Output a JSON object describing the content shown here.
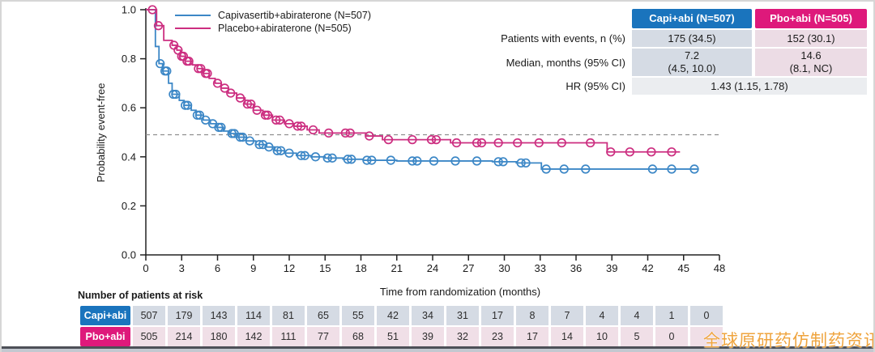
{
  "colors": {
    "capi_line": "#3c87c6",
    "pbo_line": "#cc2e80",
    "capi_header_bg": "#1a74bd",
    "pbo_header_bg": "#de197b",
    "capi_cell_bg": "#d5dbe4",
    "pbo_cell_bg": "#ecdce5",
    "risk_pbo_cell_bg": "#f0dfe7",
    "hr_cell_bg": "#ebedf0",
    "reference_line": "#8f8f8f",
    "axis": "#222222",
    "watermark": "#efa43e"
  },
  "chart_data": {
    "type": "line",
    "subtype": "kaplan-meier-step",
    "title": "",
    "xlabel": "Time from randomization (months)",
    "ylabel": "Probability event-free",
    "xlim": [
      0,
      48
    ],
    "ylim": [
      0.0,
      1.0
    ],
    "x_ticks": [
      0,
      3,
      6,
      9,
      12,
      15,
      18,
      21,
      24,
      27,
      30,
      33,
      36,
      39,
      42,
      45,
      48
    ],
    "y_ticks": [
      "0.0",
      "0.2",
      "0.4",
      "0.6",
      "0.8",
      "1.0"
    ],
    "grid": false,
    "legend_position": "top-left-inside",
    "reference_line_y": 0.49,
    "series": [
      {
        "name": "capi",
        "label": "Capivasertib+abiraterone (N=507)",
        "color": "#3c87c6",
        "end_x": 46.2,
        "steps": [
          [
            0,
            1.0
          ],
          [
            0.8,
            0.85
          ],
          [
            1.1,
            0.78
          ],
          [
            1.4,
            0.75
          ],
          [
            1.9,
            0.7
          ],
          [
            2.2,
            0.655
          ],
          [
            2.8,
            0.63
          ],
          [
            3.2,
            0.61
          ],
          [
            3.8,
            0.59
          ],
          [
            4.2,
            0.57
          ],
          [
            4.8,
            0.55
          ],
          [
            5.4,
            0.535
          ],
          [
            5.9,
            0.52
          ],
          [
            6.5,
            0.505
          ],
          [
            7.0,
            0.495
          ],
          [
            7.6,
            0.48
          ],
          [
            8.4,
            0.465
          ],
          [
            9.2,
            0.45
          ],
          [
            10.0,
            0.44
          ],
          [
            10.8,
            0.425
          ],
          [
            11.6,
            0.415
          ],
          [
            12.6,
            0.405
          ],
          [
            13.8,
            0.4
          ],
          [
            15.0,
            0.395
          ],
          [
            16.5,
            0.39
          ],
          [
            18.2,
            0.386
          ],
          [
            21.0,
            0.383
          ],
          [
            29.0,
            0.38
          ],
          [
            31.0,
            0.375
          ],
          [
            33.1,
            0.35
          ]
        ],
        "censors": [
          [
            1.2,
            0.78
          ],
          [
            1.6,
            0.75
          ],
          [
            1.75,
            0.75
          ],
          [
            2.3,
            0.655
          ],
          [
            2.5,
            0.655
          ],
          [
            3.3,
            0.61
          ],
          [
            3.5,
            0.61
          ],
          [
            4.3,
            0.57
          ],
          [
            4.5,
            0.57
          ],
          [
            5.0,
            0.55
          ],
          [
            5.6,
            0.535
          ],
          [
            6.1,
            0.52
          ],
          [
            6.3,
            0.52
          ],
          [
            7.2,
            0.495
          ],
          [
            7.4,
            0.495
          ],
          [
            7.9,
            0.48
          ],
          [
            8.1,
            0.48
          ],
          [
            8.7,
            0.465
          ],
          [
            9.5,
            0.45
          ],
          [
            9.8,
            0.45
          ],
          [
            10.3,
            0.44
          ],
          [
            11.0,
            0.425
          ],
          [
            11.3,
            0.425
          ],
          [
            12.0,
            0.415
          ],
          [
            13.0,
            0.405
          ],
          [
            13.3,
            0.405
          ],
          [
            14.2,
            0.4
          ],
          [
            15.2,
            0.395
          ],
          [
            15.6,
            0.395
          ],
          [
            16.9,
            0.39
          ],
          [
            17.2,
            0.39
          ],
          [
            18.5,
            0.386
          ],
          [
            18.9,
            0.386
          ],
          [
            20.5,
            0.386
          ],
          [
            22.3,
            0.383
          ],
          [
            22.7,
            0.383
          ],
          [
            24.1,
            0.383
          ],
          [
            25.9,
            0.383
          ],
          [
            27.7,
            0.383
          ],
          [
            29.5,
            0.38
          ],
          [
            29.9,
            0.38
          ],
          [
            31.4,
            0.375
          ],
          [
            31.8,
            0.375
          ],
          [
            33.5,
            0.35
          ],
          [
            35.0,
            0.35
          ],
          [
            36.8,
            0.35
          ],
          [
            42.4,
            0.35
          ],
          [
            44.0,
            0.35
          ],
          [
            45.9,
            0.35
          ]
        ]
      },
      {
        "name": "pbo",
        "label": "Placebo+abiraterone (N=505)",
        "color": "#cc2e80",
        "end_x": 44.7,
        "steps": [
          [
            0,
            1.0
          ],
          [
            0.9,
            0.935
          ],
          [
            1.5,
            0.875
          ],
          [
            2.2,
            0.855
          ],
          [
            2.6,
            0.835
          ],
          [
            2.9,
            0.81
          ],
          [
            3.3,
            0.79
          ],
          [
            3.9,
            0.775
          ],
          [
            4.3,
            0.76
          ],
          [
            4.8,
            0.74
          ],
          [
            5.3,
            0.72
          ],
          [
            5.8,
            0.7
          ],
          [
            6.3,
            0.68
          ],
          [
            6.9,
            0.66
          ],
          [
            7.6,
            0.64
          ],
          [
            8.3,
            0.615
          ],
          [
            9.0,
            0.59
          ],
          [
            9.8,
            0.57
          ],
          [
            10.6,
            0.55
          ],
          [
            11.6,
            0.535
          ],
          [
            12.4,
            0.525
          ],
          [
            13.5,
            0.51
          ],
          [
            14.5,
            0.497
          ],
          [
            18.4,
            0.485
          ],
          [
            19.8,
            0.47
          ],
          [
            25.5,
            0.457
          ],
          [
            38.6,
            0.42
          ]
        ],
        "censors": [
          [
            0.55,
            1.0
          ],
          [
            1.05,
            0.935
          ],
          [
            2.35,
            0.855
          ],
          [
            2.7,
            0.835
          ],
          [
            3.0,
            0.81
          ],
          [
            3.15,
            0.81
          ],
          [
            3.45,
            0.79
          ],
          [
            3.6,
            0.79
          ],
          [
            4.4,
            0.76
          ],
          [
            4.6,
            0.76
          ],
          [
            5.0,
            0.74
          ],
          [
            5.15,
            0.74
          ],
          [
            6.0,
            0.7
          ],
          [
            6.6,
            0.68
          ],
          [
            7.1,
            0.66
          ],
          [
            7.9,
            0.64
          ],
          [
            8.5,
            0.615
          ],
          [
            8.8,
            0.615
          ],
          [
            9.3,
            0.59
          ],
          [
            10.0,
            0.57
          ],
          [
            10.2,
            0.57
          ],
          [
            10.9,
            0.55
          ],
          [
            11.2,
            0.55
          ],
          [
            12.0,
            0.535
          ],
          [
            12.7,
            0.525
          ],
          [
            13.0,
            0.525
          ],
          [
            14.0,
            0.51
          ],
          [
            15.3,
            0.497
          ],
          [
            16.7,
            0.497
          ],
          [
            17.1,
            0.497
          ],
          [
            18.7,
            0.485
          ],
          [
            20.3,
            0.47
          ],
          [
            22.3,
            0.47
          ],
          [
            23.9,
            0.47
          ],
          [
            24.3,
            0.47
          ],
          [
            26.0,
            0.457
          ],
          [
            27.7,
            0.457
          ],
          [
            28.1,
            0.457
          ],
          [
            29.5,
            0.457
          ],
          [
            31.1,
            0.457
          ],
          [
            32.9,
            0.457
          ],
          [
            34.8,
            0.457
          ],
          [
            37.2,
            0.457
          ],
          [
            38.9,
            0.42
          ],
          [
            40.5,
            0.42
          ],
          [
            42.3,
            0.42
          ],
          [
            44.0,
            0.42
          ]
        ]
      }
    ]
  },
  "stats_table": {
    "headers": [
      "Capi+abi (N=507)",
      "Pbo+abi (N=505)"
    ],
    "rows": {
      "events": {
        "label": "Patients with events, n (%)",
        "capi": "175 (34.5)",
        "pbo": "152 (30.1)"
      },
      "median": {
        "label": "Median, months (95% CI)",
        "capi": "7.2\n(4.5, 10.0)",
        "pbo": "14.6\n(8.1, NC)"
      },
      "hr": {
        "label": "HR (95% CI)",
        "combined": "1.43 (1.15, 1.78)"
      }
    }
  },
  "risk_table": {
    "title": "Number of patients at risk",
    "rows": [
      {
        "label": "Capi+abi",
        "counts": [
          "507",
          "179",
          "143",
          "114",
          "81",
          "65",
          "55",
          "42",
          "34",
          "31",
          "17",
          "8",
          "7",
          "4",
          "4",
          "1",
          "0"
        ]
      },
      {
        "label": "Pbo+abi",
        "counts": [
          "505",
          "214",
          "180",
          "142",
          "111",
          "77",
          "68",
          "51",
          "39",
          "32",
          "23",
          "17",
          "14",
          "10",
          "5",
          "0",
          ""
        ]
      }
    ]
  },
  "watermark": "全球原研药仿制药资讯"
}
